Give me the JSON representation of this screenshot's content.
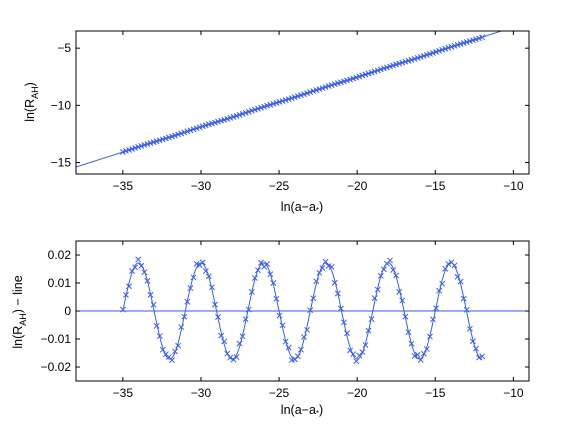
{
  "chart_data": [
    {
      "type": "scatter",
      "xlabel": "ln(a−a*)",
      "ylabel": "ln(R_AH)",
      "xlim": [
        -38,
        -9
      ],
      "ylim": [
        -16,
        -3.5
      ],
      "xticks": [
        -35,
        -30,
        -25,
        -20,
        -15,
        -10
      ],
      "yticks": [
        -15,
        -10,
        -5
      ],
      "tick_labels_x": [
        "−35",
        "−30",
        "−25",
        "−20",
        "−15",
        "−10"
      ],
      "tick_labels_y": [
        "−15",
        "−10",
        "−5"
      ],
      "grid": false,
      "legend": "none",
      "fit_line": {
        "slope": 0.4365,
        "intercept": 1.2,
        "x_range": [
          -38,
          -10
        ]
      },
      "markers": {
        "x_start": -35,
        "x_end": -12,
        "count": 118,
        "style": "x"
      },
      "color": "#3a5ee0"
    },
    {
      "type": "scatter",
      "xlabel": "ln(a−a*)",
      "ylabel": "ln(R_AH) − line",
      "xlim": [
        -38,
        -9
      ],
      "ylim": [
        -0.025,
        0.025
      ],
      "xticks": [
        -35,
        -30,
        -25,
        -20,
        -15,
        -10
      ],
      "yticks": [
        -0.02,
        -0.01,
        0,
        0.01,
        0.02
      ],
      "tick_labels_x": [
        "−35",
        "−30",
        "−25",
        "−20",
        "−15",
        "−10"
      ],
      "tick_labels_y": [
        "−0.02",
        "−0.01",
        "0",
        "0.01",
        "0.02"
      ],
      "grid": false,
      "legend": "none",
      "zero_line": {
        "y": 0,
        "x_range": [
          -38,
          -9
        ]
      },
      "oscillation": {
        "amplitude": 0.0172,
        "period": 4.0,
        "peak_at": -34.0,
        "x_range": [
          -35,
          -12
        ]
      },
      "markers": {
        "x_start": -35,
        "x_end": -12,
        "count": 118,
        "style": "x"
      },
      "color": "#3a5ee0"
    }
  ]
}
